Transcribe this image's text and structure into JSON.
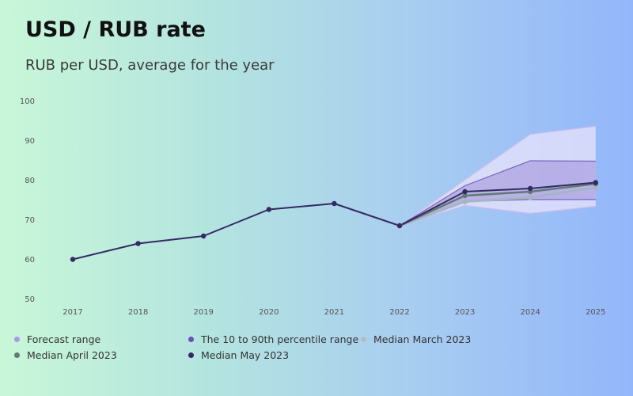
{
  "chart_data": {
    "type": "line",
    "title": "USD / RUB rate",
    "subtitle": "RUB per USD, average for the year",
    "xlabel": "",
    "ylabel": "",
    "x": [
      "2017",
      "2018",
      "2019",
      "2020",
      "2021",
      "2022",
      "2023",
      "2024",
      "2025"
    ],
    "ylim": [
      50,
      100
    ],
    "yticks": [
      50,
      60,
      70,
      80,
      90,
      100
    ],
    "grid": false,
    "legend_position": "bottom",
    "series": [
      {
        "name": "Forecast range",
        "type": "band",
        "color": "#a99be3",
        "x": [
          "2022",
          "2023",
          "2024",
          "2025"
        ],
        "low": [
          68.4,
          73.5,
          71.5,
          73.3
        ],
        "high": [
          68.4,
          80.0,
          91.5,
          93.5
        ]
      },
      {
        "name": "The 10 to 90th percentile range",
        "type": "band",
        "color": "#6b4fb5",
        "x": [
          "2022",
          "2023",
          "2024",
          "2025"
        ],
        "low": [
          68.4,
          74.5,
          75.0,
          75.0
        ],
        "high": [
          68.4,
          78.5,
          84.8,
          84.7
        ]
      },
      {
        "name": "Median March 2023",
        "type": "line",
        "color": "#a8b4c4",
        "x": [
          "2022",
          "2023",
          "2024",
          "2025"
        ],
        "values": [
          68.4,
          74.5,
          75.5,
          78.0
        ]
      },
      {
        "name": "Median April 2023",
        "type": "line",
        "color": "#5f7a72",
        "x": [
          "2022",
          "2023",
          "2024",
          "2025"
        ],
        "values": [
          68.4,
          76.0,
          77.0,
          79.0
        ]
      },
      {
        "name": "Median May 2023",
        "type": "line",
        "color": "#332a63",
        "x": [
          "2017",
          "2018",
          "2019",
          "2020",
          "2021",
          "2022",
          "2023",
          "2024",
          "2025"
        ],
        "values": [
          59.9,
          63.9,
          65.8,
          72.5,
          74.0,
          68.4,
          77.0,
          77.8,
          79.3
        ]
      }
    ]
  },
  "legend": {
    "forecast_range": "Forecast range",
    "percentile_range": "The 10 to 90th percentile range",
    "median_march": "Median March 2023",
    "median_april": "Median April 2023",
    "median_may": "Median May 2023"
  },
  "colors": {
    "forecast_dot": "#a99be3",
    "percentile_dot": "#6b4fb5",
    "march_dot": "#b4bcc6",
    "april_dot": "#5f7a72",
    "may_dot": "#332a63"
  }
}
